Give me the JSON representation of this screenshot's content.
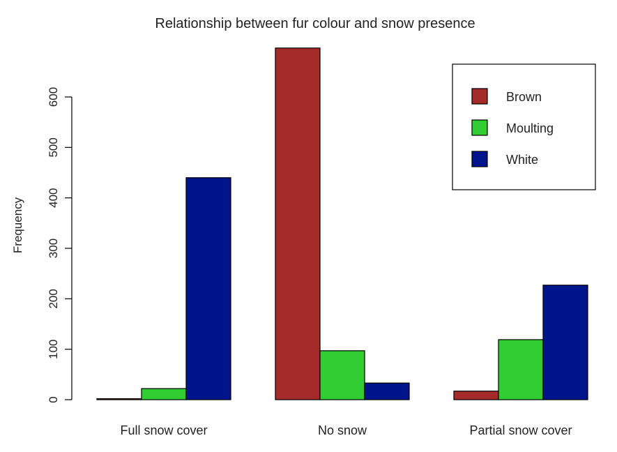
{
  "chart_data": {
    "type": "bar",
    "title": "Relationship between fur colour and snow presence",
    "xlabel": "",
    "ylabel": "Frequency",
    "categories": [
      "Full snow cover",
      "No snow",
      "Partial snow cover"
    ],
    "series": [
      {
        "name": "Brown",
        "color": "#A52A2A",
        "values": [
          2,
          697,
          17
        ]
      },
      {
        "name": "Moulting",
        "color": "#32CD32",
        "values": [
          22,
          97,
          119
        ]
      },
      {
        "name": "White",
        "color": "#00148C",
        "values": [
          440,
          33,
          227
        ]
      }
    ],
    "yticks": [
      0,
      100,
      200,
      300,
      400,
      500,
      600
    ],
    "ylim": [
      0,
      697
    ],
    "grid": false,
    "legend_position": "top-right"
  }
}
